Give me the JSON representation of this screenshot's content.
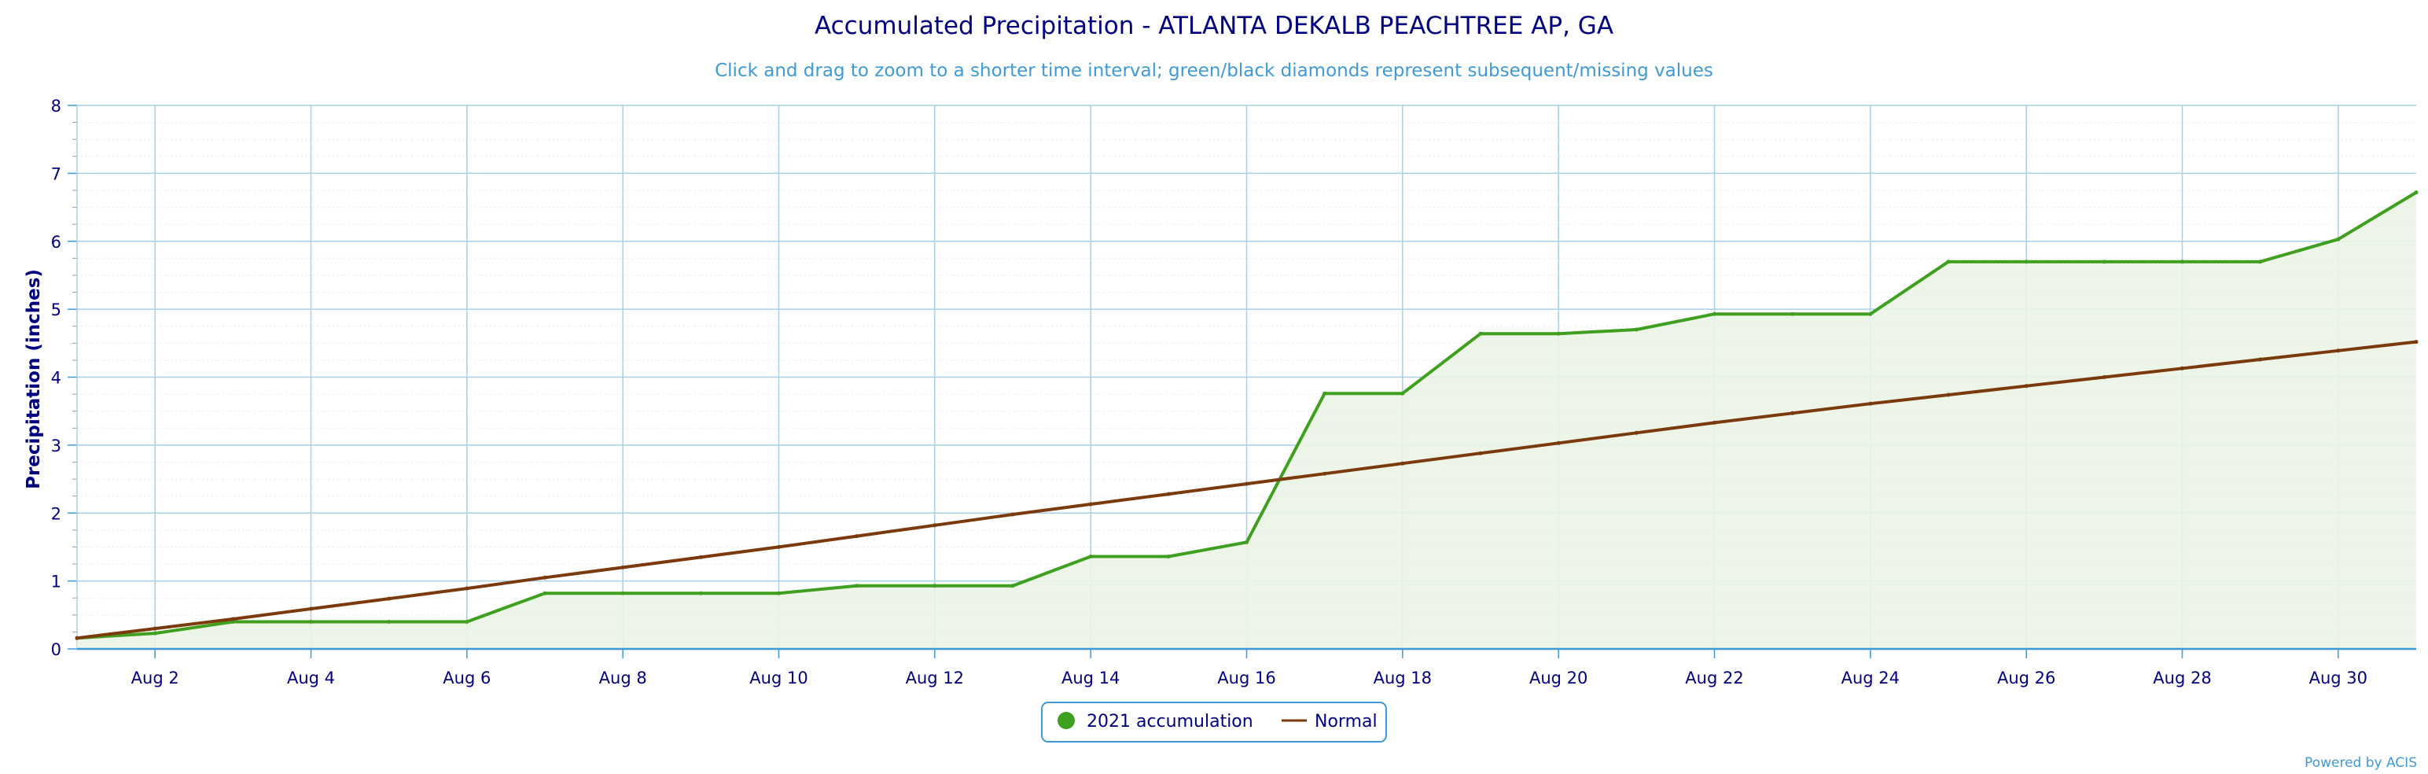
{
  "chart_data": {
    "type": "area",
    "title": "Accumulated Precipitation - ATLANTA DEKALB PEACHTREE AP, GA",
    "subtitle": "Click and drag to zoom to a shorter time interval; green/black diamonds represent subsequent/missing values",
    "xlabel": "",
    "ylabel": "Precipitation (inches)",
    "ylim": [
      0,
      8
    ],
    "yticks": [
      "0",
      "1",
      "2",
      "3",
      "4",
      "5",
      "6",
      "7",
      "8"
    ],
    "xlim": [
      1,
      31
    ],
    "xticks": [
      {
        "day": 2,
        "label": "Aug 2"
      },
      {
        "day": 4,
        "label": "Aug 4"
      },
      {
        "day": 6,
        "label": "Aug 6"
      },
      {
        "day": 8,
        "label": "Aug 8"
      },
      {
        "day": 10,
        "label": "Aug 10"
      },
      {
        "day": 12,
        "label": "Aug 12"
      },
      {
        "day": 14,
        "label": "Aug 14"
      },
      {
        "day": 16,
        "label": "Aug 16"
      },
      {
        "day": 18,
        "label": "Aug 18"
      },
      {
        "day": 20,
        "label": "Aug 20"
      },
      {
        "day": 22,
        "label": "Aug 22"
      },
      {
        "day": 24,
        "label": "Aug 24"
      },
      {
        "day": 26,
        "label": "Aug 26"
      },
      {
        "day": 28,
        "label": "Aug 28"
      },
      {
        "day": 30,
        "label": "Aug 30"
      }
    ],
    "grid": true,
    "legend_position": "bottom-center",
    "series": [
      {
        "name": "2021 accumulation",
        "style": "area",
        "color": "#3f9f1f",
        "fill": "#eaf4e4",
        "x": [
          1,
          2,
          3,
          4,
          5,
          6,
          7,
          8,
          9,
          10,
          11,
          12,
          13,
          14,
          15,
          16,
          17,
          18,
          19,
          20,
          21,
          22,
          23,
          24,
          25,
          26,
          27,
          28,
          29,
          30,
          31
        ],
        "values": [
          0.16,
          0.23,
          0.4,
          0.4,
          0.4,
          0.4,
          0.82,
          0.82,
          0.82,
          0.82,
          0.93,
          0.93,
          0.93,
          1.36,
          1.36,
          1.57,
          3.76,
          3.76,
          4.64,
          4.64,
          4.7,
          4.93,
          4.93,
          4.93,
          5.7,
          5.7,
          5.7,
          5.7,
          5.7,
          6.03,
          6.72
        ]
      },
      {
        "name": "Normal",
        "style": "line",
        "color": "#7b3a0c",
        "x": [
          1,
          2,
          3,
          4,
          5,
          6,
          7,
          8,
          9,
          10,
          11,
          12,
          13,
          14,
          15,
          16,
          17,
          18,
          19,
          20,
          21,
          22,
          23,
          24,
          25,
          26,
          27,
          28,
          29,
          30,
          31
        ],
        "values": [
          0.16,
          0.3,
          0.44,
          0.59,
          0.74,
          0.89,
          1.05,
          1.2,
          1.35,
          1.5,
          1.66,
          1.82,
          1.98,
          2.13,
          2.28,
          2.43,
          2.58,
          2.73,
          2.88,
          3.03,
          3.18,
          3.33,
          3.47,
          3.61,
          3.74,
          3.87,
          4.0,
          4.13,
          4.26,
          4.39,
          4.52
        ]
      }
    ]
  },
  "credit": "Powered by ACIS",
  "colors": {
    "grid": "#a8d0e8",
    "axis": "#3e9ad6",
    "legend_border": "#3e9ad6"
  }
}
